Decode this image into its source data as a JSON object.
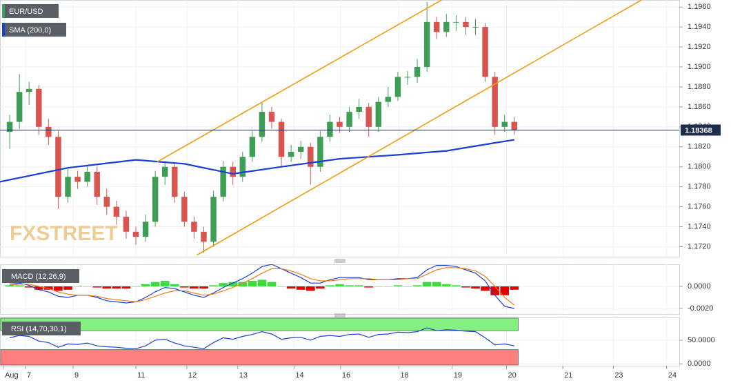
{
  "chart_data": [
    {
      "type": "candlestick",
      "title": "EUR/USD",
      "watermark": "FXSTREET",
      "x": [
        0,
        1,
        2,
        3,
        4,
        5,
        6,
        7,
        8,
        9,
        10,
        11,
        12,
        13,
        14,
        15,
        16,
        17,
        18,
        19,
        20,
        21,
        22,
        23,
        24,
        25,
        26,
        27,
        28,
        29,
        30,
        31,
        32,
        33,
        34,
        35,
        36,
        37,
        38,
        39,
        40,
        41,
        42,
        43,
        44,
        45,
        46,
        47,
        48,
        49,
        50,
        51,
        52
      ],
      "open": [
        1.1835,
        1.1845,
        1.1875,
        1.1878,
        1.184,
        1.183,
        1.177,
        1.179,
        1.1785,
        1.1795,
        1.177,
        1.176,
        1.175,
        1.1735,
        1.173,
        1.1745,
        1.179,
        1.18,
        1.177,
        1.1745,
        1.1735,
        1.1725,
        1.177,
        1.18,
        1.179,
        1.181,
        1.183,
        1.1855,
        1.1845,
        1.181,
        1.1815,
        1.182,
        1.18,
        1.183,
        1.1845,
        1.184,
        1.1855,
        1.186,
        1.184,
        1.1865,
        1.187,
        1.189,
        1.189,
        1.19,
        1.1945,
        1.1935,
        1.1945,
        1.1945,
        1.194,
        1.194,
        1.189,
        1.184,
        1.1845
      ],
      "high": [
        1.1852,
        1.1893,
        1.1885,
        1.1882,
        1.1848,
        1.1836,
        1.1798,
        1.1796,
        1.1802,
        1.18,
        1.1778,
        1.1766,
        1.1756,
        1.174,
        1.1752,
        1.1796,
        1.1806,
        1.1804,
        1.1775,
        1.175,
        1.174,
        1.1776,
        1.1806,
        1.1805,
        1.1815,
        1.1836,
        1.1865,
        1.186,
        1.1848,
        1.1822,
        1.1826,
        1.1824,
        1.1836,
        1.1852,
        1.185,
        1.186,
        1.1868,
        1.1864,
        1.187,
        1.188,
        1.1895,
        1.1896,
        1.1908,
        1.1965,
        1.195,
        1.1953,
        1.1952,
        1.195,
        1.1948,
        1.1944,
        1.1895,
        1.1852,
        1.185
      ],
      "low": [
        1.1818,
        1.1838,
        1.1862,
        1.1832,
        1.1822,
        1.1758,
        1.1764,
        1.1778,
        1.178,
        1.1762,
        1.1752,
        1.1742,
        1.1728,
        1.1722,
        1.1725,
        1.174,
        1.1782,
        1.1764,
        1.174,
        1.1728,
        1.1714,
        1.172,
        1.1765,
        1.1782,
        1.1785,
        1.1805,
        1.1825,
        1.1838,
        1.18,
        1.1805,
        1.1808,
        1.1782,
        1.1795,
        1.1825,
        1.1834,
        1.1835,
        1.1848,
        1.183,
        1.1835,
        1.186,
        1.1866,
        1.1882,
        1.1884,
        1.1895,
        1.1928,
        1.193,
        1.1936,
        1.1932,
        1.1932,
        1.1885,
        1.1832,
        1.1835,
        1.1832
      ],
      "close": [
        1.1845,
        1.1875,
        1.1878,
        1.184,
        1.183,
        1.177,
        1.179,
        1.1785,
        1.1795,
        1.177,
        1.176,
        1.175,
        1.1735,
        1.173,
        1.1745,
        1.179,
        1.18,
        1.177,
        1.1745,
        1.1735,
        1.1725,
        1.177,
        1.18,
        1.179,
        1.181,
        1.183,
        1.1855,
        1.1845,
        1.181,
        1.1815,
        1.182,
        1.18,
        1.183,
        1.1845,
        1.184,
        1.1855,
        1.186,
        1.184,
        1.1865,
        1.187,
        1.189,
        1.189,
        1.19,
        1.1945,
        1.1935,
        1.1945,
        1.1945,
        1.194,
        1.194,
        1.189,
        1.184,
        1.1845,
        1.1837
      ],
      "up_color": "#3f9e56",
      "down_color": "#d9534f",
      "overlays": [
        {
          "name": "SMA (200,0)",
          "color": "#1a3fd4",
          "x": [
            -1,
            6,
            13,
            18,
            23,
            28,
            34,
            40,
            45,
            50,
            52
          ],
          "values": [
            1.1785,
            1.1799,
            1.1807,
            1.1803,
            1.1793,
            1.18,
            1.1808,
            1.1812,
            1.1816,
            1.1824,
            1.1827
          ]
        }
      ],
      "channel": [
        {
          "color": "#f39c12",
          "x": [
            15.2,
            44.5
          ],
          "values": [
            1.1805,
            1.1967
          ]
        },
        {
          "color": "#f39c12",
          "x": [
            19.3,
            65.1
          ],
          "values": [
            1.17117,
            1.1967
          ]
        }
      ],
      "last_price": {
        "value": 1.18368,
        "label": "1.18368"
      },
      "xlim": [
        -1,
        69
      ],
      "xticks": [
        {
          "value": -0.64,
          "label": "Aug"
        },
        {
          "value": 1.63,
          "label": "7"
        },
        {
          "value": 6.53,
          "label": "9"
        },
        {
          "value": 13.0,
          "label": "11"
        },
        {
          "value": 18.26,
          "label": "12"
        },
        {
          "value": 23.5,
          "label": "13"
        },
        {
          "value": 29.3,
          "label": "14"
        },
        {
          "value": 34.1,
          "label": "16"
        },
        {
          "value": 40.1,
          "label": "18"
        },
        {
          "value": 45.6,
          "label": "19"
        },
        {
          "value": 51.2,
          "label": "20"
        },
        {
          "value": 57.0,
          "label": "21"
        },
        {
          "value": 62.2,
          "label": "23"
        },
        {
          "value": 67.7,
          "label": "24"
        }
      ],
      "ylim": [
        1.171,
        1.1967
      ],
      "yticks": [
        {
          "value": 1.172,
          "label": "1.1720"
        },
        {
          "value": 1.174,
          "label": "1.1740"
        },
        {
          "value": 1.176,
          "label": "1.1760"
        },
        {
          "value": 1.178,
          "label": "1.1780"
        },
        {
          "value": 1.18,
          "label": "1.1800"
        },
        {
          "value": 1.182,
          "label": "1.1820"
        },
        {
          "value": 1.184,
          "label": "1.1840"
        },
        {
          "value": 1.186,
          "label": "1.1860"
        },
        {
          "value": 1.188,
          "label": "1.1880"
        },
        {
          "value": 1.19,
          "label": "1.1900"
        },
        {
          "value": 1.192,
          "label": "1.1920"
        },
        {
          "value": 1.194,
          "label": "1.1940"
        },
        {
          "value": 1.196,
          "label": "1.1960"
        }
      ],
      "grid": true
    },
    {
      "type": "macd",
      "title": "MACD (12,26,9)",
      "macd": [
        0.0002,
        0.0003,
        0.0001,
        -0.0003,
        -0.0005,
        -0.0009,
        -0.001,
        -0.0008,
        -0.0008,
        -0.001,
        -0.0013,
        -0.0014,
        -0.0015,
        -0.0014,
        -0.001,
        -0.0005,
        -0.0001,
        -0.0002,
        -0.0005,
        -0.0008,
        -0.001,
        -0.0006,
        -0.0001,
        0.0003,
        0.0007,
        0.0012,
        0.0018,
        0.002,
        0.0016,
        0.0012,
        0.0008,
        0.0003,
        0.0003,
        0.0006,
        0.0008,
        0.0008,
        0.0008,
        0.0006,
        0.0006,
        0.0006,
        0.0007,
        0.0007,
        0.0008,
        0.0015,
        0.0019,
        0.0019,
        0.0018,
        0.0015,
        0.0012,
        0.0005,
        -0.0008,
        -0.0018,
        -0.002
      ],
      "signal": [
        0.0001,
        0.0002,
        0.0002,
        0.0,
        -0.0002,
        -0.0005,
        -0.0007,
        -0.0008,
        -0.0008,
        -0.0009,
        -0.0011,
        -0.0012,
        -0.0013,
        -0.0014,
        -0.0012,
        -0.0009,
        -0.0006,
        -0.0004,
        -0.0004,
        -0.0006,
        -0.0008,
        -0.0007,
        -0.0004,
        -0.0001,
        0.0003,
        0.0007,
        0.0012,
        0.0016,
        0.0016,
        0.0014,
        0.0011,
        0.0007,
        0.0005,
        0.0005,
        0.0006,
        0.0007,
        0.0007,
        0.0007,
        0.0006,
        0.0006,
        0.0006,
        0.0007,
        0.0007,
        0.0011,
        0.0015,
        0.0017,
        0.0017,
        0.0016,
        0.0014,
        0.0009,
        0.0,
        -0.001,
        -0.0017
      ],
      "histogram": [
        0.0001,
        0.0001,
        -0.0001,
        -0.0003,
        -0.0003,
        -0.0004,
        -0.0003,
        0.0,
        0.0,
        -0.0001,
        -0.0002,
        -0.0002,
        -0.0002,
        0.0,
        0.0002,
        0.0004,
        0.0005,
        0.0002,
        -0.0001,
        -0.0002,
        -0.0002,
        0.0001,
        0.0003,
        0.0004,
        0.0004,
        0.0005,
        0.0006,
        0.0004,
        0.0,
        -0.0002,
        -0.0003,
        -0.0004,
        -0.0002,
        0.0001,
        0.0002,
        0.0001,
        0.0001,
        -0.0001,
        0.0,
        0.0,
        0.0001,
        0.0,
        0.0001,
        0.0004,
        0.0004,
        0.0002,
        0.0001,
        -0.0001,
        -0.0002,
        -0.0004,
        -0.0008,
        -0.0008,
        -0.0003
      ],
      "macd_color": "#1a3fd4",
      "signal_color": "#f07c1a",
      "up_color": "#3ddc3d",
      "down_color": "#e30000",
      "ylim": [
        -0.0025,
        0.002
      ],
      "yticks": [
        {
          "value": 0,
          "label": "0.0000"
        },
        {
          "value": -0.002,
          "label": "-0.0020"
        }
      ]
    },
    {
      "type": "rsi",
      "title": "RSI (14,70,30,1)",
      "values": [
        55,
        60,
        58,
        48,
        45,
        35,
        42,
        41,
        44,
        38,
        36,
        35,
        33,
        32,
        38,
        50,
        52,
        44,
        38,
        35,
        32,
        45,
        55,
        52,
        58,
        62,
        68,
        63,
        52,
        55,
        56,
        50,
        58,
        60,
        58,
        62,
        63,
        56,
        62,
        63,
        67,
        66,
        68,
        76,
        70,
        72,
        71,
        69,
        68,
        55,
        40,
        42,
        38
      ],
      "color": "#1a3fd4",
      "overbought": 70,
      "oversold": 30,
      "overbought_color": "#84f07f",
      "oversold_color": "#ff7f7f",
      "ylim": [
        -4,
        98
      ],
      "yticks": [
        {
          "value": 50,
          "label": "50.0000"
        },
        {
          "value": 0,
          "label": "0.0000"
        }
      ]
    }
  ]
}
